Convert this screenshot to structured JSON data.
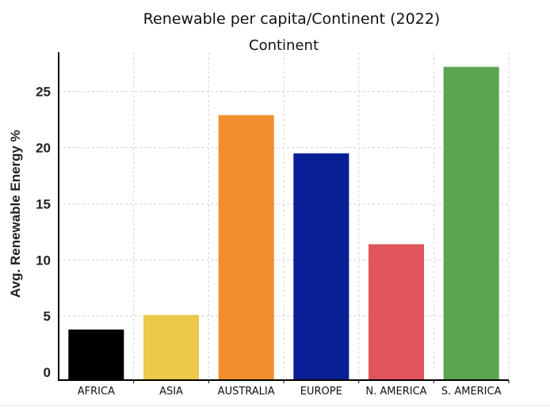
{
  "chart_data": {
    "type": "bar",
    "title": "Renewable per capita/Continent (2022)",
    "subtitle": "Continent",
    "ylabel": "Avg. Renewable Energy %",
    "categories": [
      "AFRICA",
      "ASIA",
      "AUSTRALIA",
      "EUROPE",
      "N. AMERICA",
      "S. AMERICA"
    ],
    "values": [
      3.8,
      5.1,
      22.9,
      19.5,
      11.4,
      27.2
    ],
    "colors": [
      "#000000",
      "#ebc94a",
      "#f28f2c",
      "#0a1f96",
      "#e0555b",
      "#5ba551"
    ],
    "yticks": [
      0,
      5,
      10,
      15,
      20,
      25
    ],
    "ylim": [
      -0.7,
      28.5
    ],
    "grid": true
  }
}
